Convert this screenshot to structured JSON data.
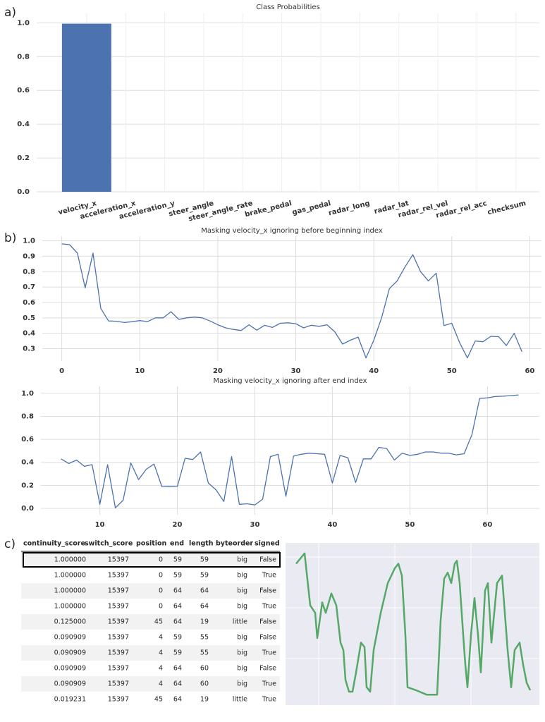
{
  "panel_labels": [
    "a)",
    "b)",
    "c)"
  ],
  "chart_data": [
    {
      "type": "bar",
      "title": "Class Probabilities",
      "categories": [
        "velocity_x",
        "acceleration_x",
        "acceleration_y",
        "steer_angle",
        "steer_angle_rate",
        "brake_pedal",
        "gas_pedal",
        "radar_long",
        "radar_lat",
        "radar_rel_vel",
        "radar_rel_acc",
        "checksum"
      ],
      "values": [
        0.995,
        0,
        0,
        0,
        0,
        0,
        0,
        0,
        0,
        0,
        0,
        0
      ],
      "color": "#4c72b0",
      "ylim": [
        0,
        1.06
      ],
      "yticks": [
        {
          "value": 0,
          "label": "0.0"
        },
        0.2,
        0.4,
        0.6,
        0.8,
        {
          "value": 1,
          "label": "1.0"
        }
      ],
      "grid": true
    },
    {
      "type": "line",
      "title": "Masking velocity_x ignoring before beginning index",
      "x": [
        0,
        1,
        2,
        3,
        4,
        5,
        6,
        7,
        8,
        9,
        10,
        11,
        12,
        13,
        14,
        15,
        16,
        17,
        18,
        19,
        20,
        21,
        22,
        23,
        24,
        25,
        26,
        27,
        28,
        29,
        30,
        31,
        32,
        33,
        34,
        35,
        36,
        37,
        38,
        39,
        40,
        41,
        42,
        43,
        44,
        45,
        46,
        47,
        48,
        49,
        50,
        51,
        52,
        53,
        54,
        55,
        56,
        57,
        58,
        59
      ],
      "values": [
        0.98,
        0.975,
        0.92,
        0.695,
        0.92,
        0.56,
        0.48,
        0.478,
        0.47,
        0.475,
        0.482,
        0.476,
        0.5,
        0.5,
        0.54,
        0.49,
        0.5,
        0.505,
        0.5,
        0.48,
        0.455,
        0.435,
        0.425,
        0.418,
        0.455,
        0.42,
        0.452,
        0.438,
        0.465,
        0.468,
        0.462,
        0.435,
        0.452,
        0.445,
        0.455,
        0.41,
        0.33,
        0.355,
        0.375,
        0.24,
        0.355,
        0.5,
        0.69,
        0.74,
        0.83,
        0.91,
        0.8,
        0.74,
        0.79,
        0.45,
        0.465,
        0.34,
        0.24,
        0.35,
        0.345,
        0.38,
        0.378,
        0.32,
        0.4,
        0.28
      ],
      "color": "#4c72b0",
      "xlim": [
        -2.5,
        61.5
      ],
      "ylim": [
        0.22,
        1.03
      ],
      "xticks": [
        0,
        10,
        20,
        30,
        40,
        50,
        60
      ],
      "yticks": [
        0.3,
        0.4,
        0.5,
        0.6,
        0.7,
        0.8,
        0.9,
        {
          "value": 1,
          "label": "1.0"
        }
      ],
      "grid": true
    },
    {
      "type": "line",
      "title": "Masking velocity_x ignoring after end index",
      "x": [
        5,
        6,
        7,
        8,
        9,
        10,
        11,
        12,
        13,
        14,
        15,
        16,
        17,
        18,
        19,
        20,
        21,
        22,
        23,
        24,
        25,
        26,
        27,
        28,
        29,
        30,
        31,
        32,
        33,
        34,
        35,
        36,
        37,
        38,
        39,
        40,
        41,
        42,
        43,
        44,
        45,
        46,
        47,
        48,
        49,
        50,
        51,
        52,
        53,
        54,
        55,
        56,
        57,
        58,
        59,
        60,
        61,
        62,
        63,
        64
      ],
      "values": [
        0.43,
        0.39,
        0.42,
        0.365,
        0.38,
        0.035,
        0.38,
        0.005,
        0.07,
        0.395,
        0.25,
        0.34,
        0.385,
        0.19,
        0.188,
        0.19,
        0.435,
        0.425,
        0.49,
        0.22,
        0.16,
        0.06,
        0.45,
        0.035,
        0.04,
        0.03,
        0.08,
        0.45,
        0.47,
        0.105,
        0.455,
        0.47,
        0.48,
        0.475,
        0.47,
        0.22,
        0.46,
        0.44,
        0.225,
        0.43,
        0.43,
        0.53,
        0.52,
        0.42,
        0.48,
        0.46,
        0.47,
        0.49,
        0.49,
        0.48,
        0.48,
        0.465,
        0.475,
        0.64,
        0.955,
        0.96,
        0.972,
        0.975,
        0.98,
        0.985
      ],
      "color": "#4c72b0",
      "xlim": [
        2.4,
        66.7
      ],
      "ylim": [
        -0.055,
        1.06
      ],
      "xticks": [
        10,
        20,
        30,
        40,
        50,
        60
      ],
      "yticks": [
        {
          "value": 0,
          "label": "0.0"
        },
        0.2,
        0.4,
        0.6,
        0.8,
        {
          "value": 1,
          "label": "1.0"
        }
      ],
      "grid": true
    },
    {
      "type": "line",
      "x": [
        15,
        27,
        35,
        42,
        45,
        52,
        57,
        65,
        72,
        78,
        82,
        85,
        90,
        95,
        100,
        107,
        112,
        115,
        120,
        125,
        135,
        145,
        155,
        160,
        165,
        170,
        173,
        185,
        200,
        215,
        220,
        225,
        230,
        235,
        240,
        243,
        247,
        252,
        255,
        258,
        263,
        268,
        273,
        277,
        283,
        287,
        292,
        300,
        307,
        311,
        315,
        320,
        325,
        332,
        337,
        342,
        347
      ],
      "values": [
        0.88,
        0.95,
        0.6,
        0.55,
        0.38,
        0.62,
        0.55,
        0.68,
        0.6,
        0.35,
        0.3,
        0.1,
        0.02,
        0.02,
        0.15,
        0.35,
        0.32,
        0.05,
        0.02,
        0.3,
        0.55,
        0.75,
        0.85,
        0.88,
        0.8,
        0.4,
        0.05,
        0.03,
        0,
        0,
        0.5,
        0.78,
        0.82,
        0.75,
        0.88,
        0.9,
        0.75,
        0.4,
        0.2,
        0.05,
        0.4,
        0.65,
        0.4,
        0.15,
        0.7,
        0.75,
        0.35,
        0.75,
        0.8,
        0.55,
        0.3,
        0.05,
        0.3,
        0.35,
        0.2,
        0.08,
        0.03
      ],
      "color": "#55a868",
      "xlim": [
        0,
        360
      ],
      "ylim": [
        -0.07,
        1.02
      ]
    }
  ],
  "table": {
    "columns": [
      "continuity_score",
      "switch_score",
      "position",
      "end",
      "length",
      "byteorder",
      "signed"
    ],
    "rows": [
      [
        "1.000000",
        "15397",
        "0",
        "59",
        "59",
        "big",
        "False"
      ],
      [
        "1.000000",
        "15397",
        "0",
        "59",
        "59",
        "big",
        "True"
      ],
      [
        "1.000000",
        "15397",
        "0",
        "64",
        "64",
        "big",
        "False"
      ],
      [
        "1.000000",
        "15397",
        "0",
        "64",
        "64",
        "big",
        "True"
      ],
      [
        "0.125000",
        "15397",
        "45",
        "64",
        "19",
        "little",
        "False"
      ],
      [
        "0.090909",
        "15397",
        "4",
        "59",
        "55",
        "big",
        "False"
      ],
      [
        "0.090909",
        "15397",
        "4",
        "59",
        "55",
        "big",
        "True"
      ],
      [
        "0.090909",
        "15397",
        "4",
        "64",
        "60",
        "big",
        "False"
      ],
      [
        "0.090909",
        "15397",
        "4",
        "64",
        "60",
        "big",
        "True"
      ],
      [
        "0.019231",
        "15397",
        "45",
        "64",
        "19",
        "little",
        "True"
      ]
    ],
    "highlighted_row": 0
  }
}
